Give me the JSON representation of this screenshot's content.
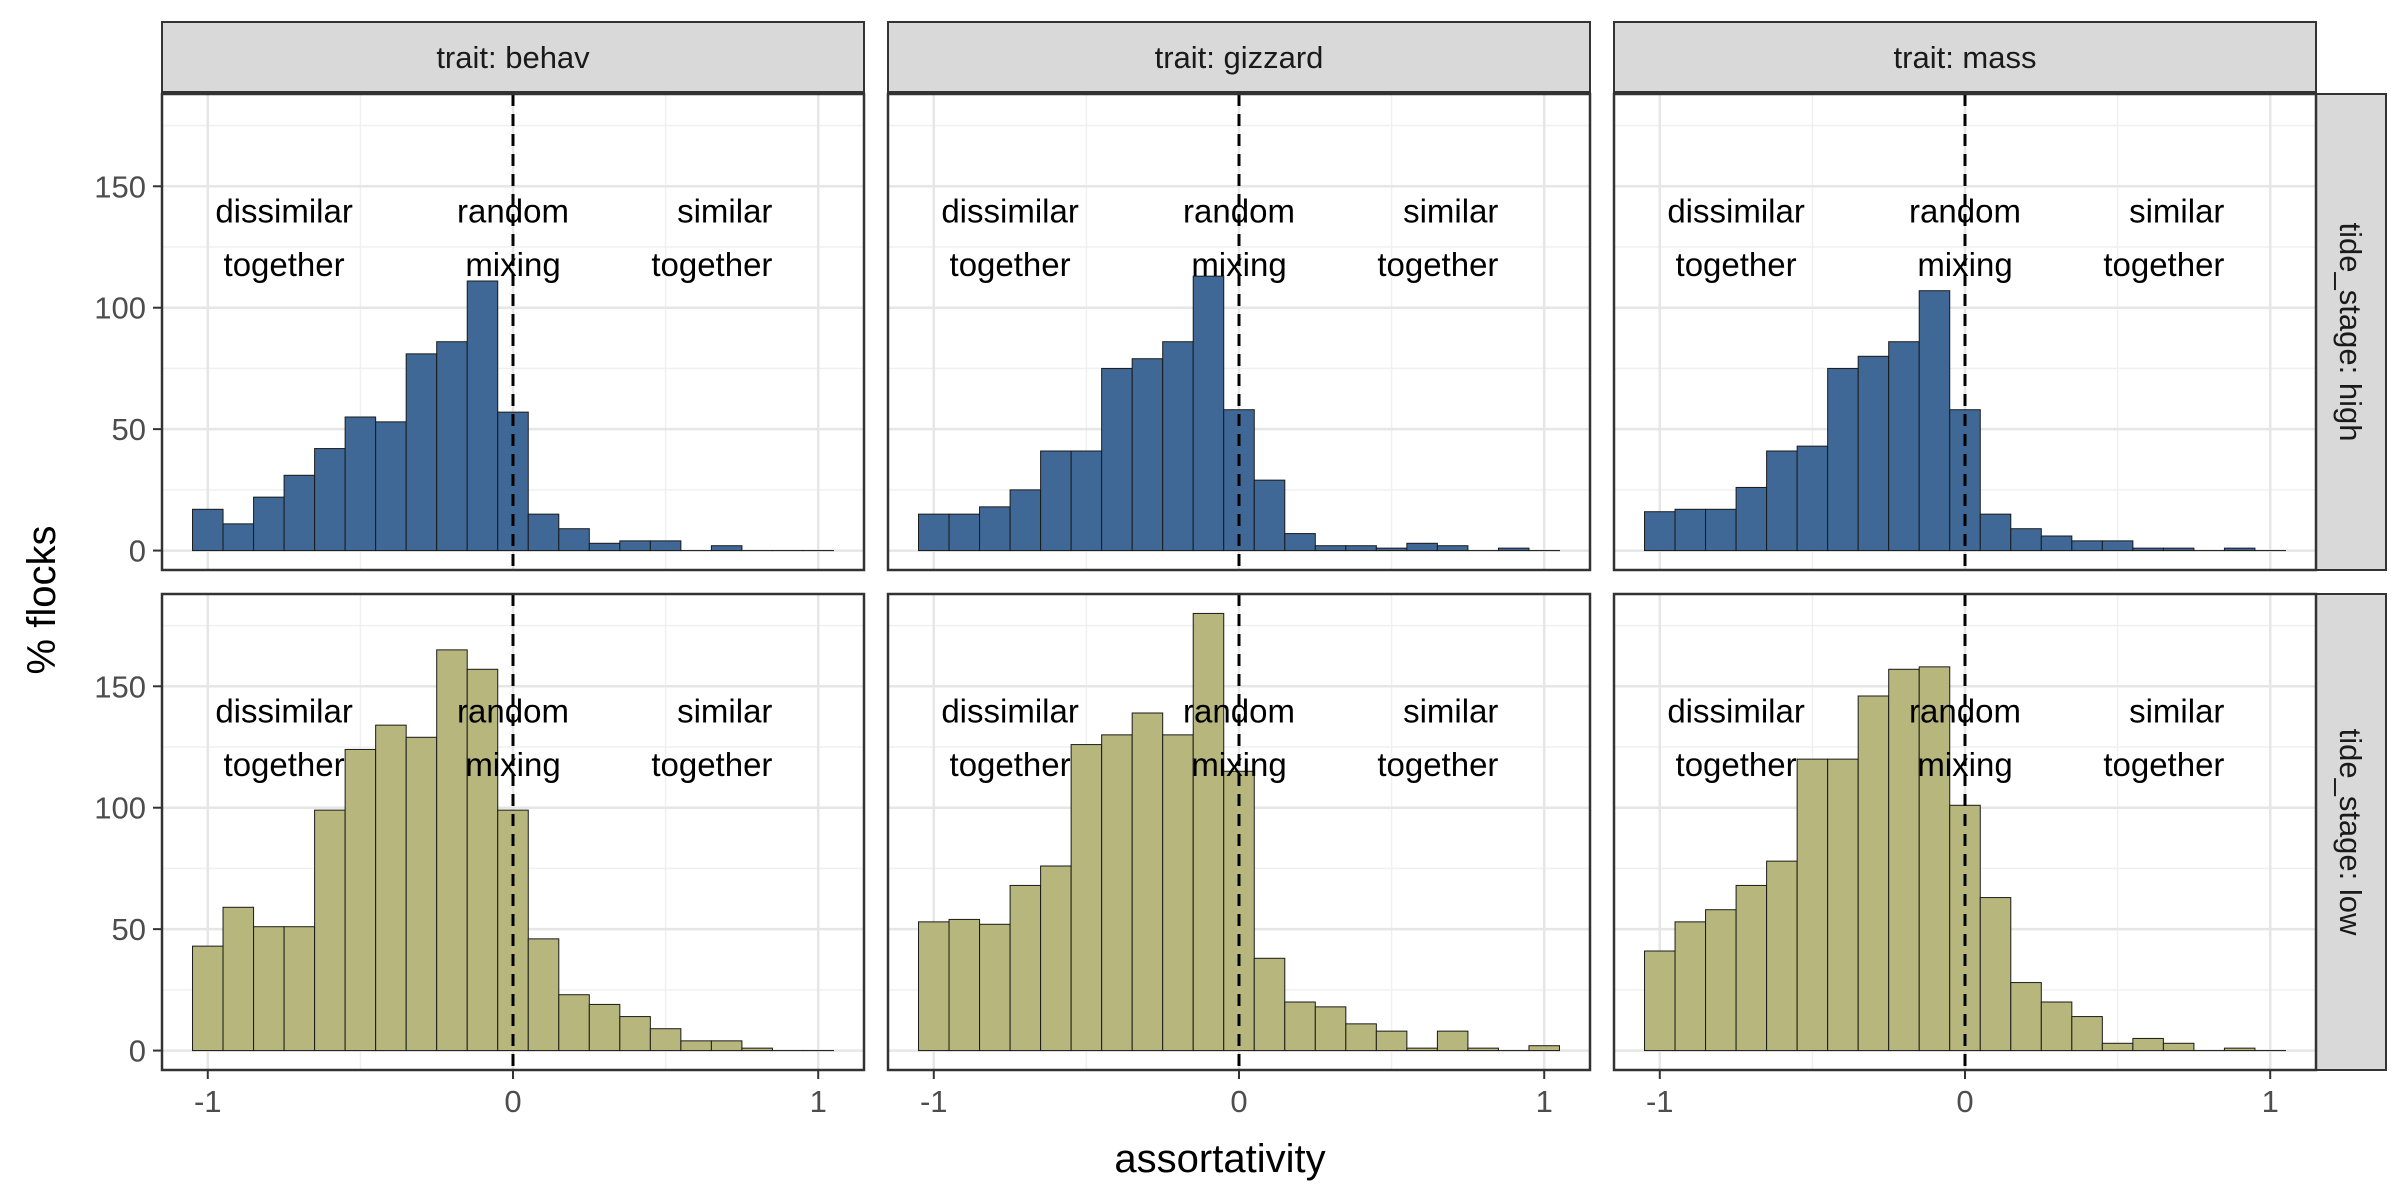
{
  "chart_data": {
    "type": "bar",
    "subtype": "histogram",
    "xlabel": "assortativity",
    "ylabel": "% flocks",
    "xlim": [
      -1.15,
      1.15
    ],
    "ylim": [
      -8,
      188
    ],
    "x_ticks": [
      -1,
      0,
      1
    ],
    "x_tick_labels": [
      "-1",
      "0",
      "1"
    ],
    "y_ticks": [
      0,
      50,
      100,
      150
    ],
    "y_tick_labels": [
      "0",
      "50",
      "100",
      "150"
    ],
    "bin_width": 0.1,
    "bin_starts": [
      -1.05,
      -0.95,
      -0.85,
      -0.75,
      -0.65,
      -0.55,
      -0.45,
      -0.35,
      -0.25,
      -0.15,
      -0.05,
      0.05,
      0.15,
      0.25,
      0.35,
      0.45,
      0.55,
      0.65,
      0.75,
      0.85,
      0.95
    ],
    "reference_line_x": 0,
    "grid": true,
    "colors": {
      "high": "#3f6896",
      "low": "#b7b77d",
      "bar_outline": "#1a1a1a",
      "strip_fill": "#d9d9d9"
    },
    "annotations": [
      {
        "x": -0.75,
        "line1": "dissimilar",
        "line2": "together",
        "align": "middle"
      },
      {
        "x": 0,
        "line1": "random",
        "line2": "mixing",
        "align": "middle"
      },
      {
        "x": 0.85,
        "line1": "similar",
        "line2": "together",
        "align": "end"
      }
    ],
    "annotation_y": [
      140,
      118
    ],
    "col_strip_labels": [
      "trait: behav",
      "trait: gizzard",
      "trait: mass"
    ],
    "row_strip_labels": [
      "tide_stage: high",
      "tide_stage: low"
    ],
    "panels": [
      {
        "row": 0,
        "col": 0,
        "tide_stage": "high",
        "trait": "behav",
        "values": [
          17,
          11,
          22,
          31,
          42,
          55,
          53,
          81,
          86,
          111,
          57,
          15,
          9,
          3,
          4,
          4,
          0,
          2,
          0,
          0,
          0
        ]
      },
      {
        "row": 0,
        "col": 1,
        "tide_stage": "high",
        "trait": "gizzard",
        "values": [
          15,
          15,
          18,
          25,
          41,
          41,
          75,
          79,
          86,
          113,
          58,
          29,
          7,
          2,
          2,
          1,
          3,
          2,
          0,
          1,
          0
        ]
      },
      {
        "row": 0,
        "col": 2,
        "tide_stage": "high",
        "trait": "mass",
        "values": [
          16,
          17,
          17,
          26,
          41,
          43,
          75,
          80,
          86,
          107,
          58,
          15,
          9,
          6,
          4,
          4,
          1,
          1,
          0,
          1,
          0
        ]
      },
      {
        "row": 1,
        "col": 0,
        "tide_stage": "low",
        "trait": "behav",
        "values": [
          43,
          59,
          51,
          51,
          99,
          124,
          134,
          129,
          165,
          157,
          99,
          46,
          23,
          19,
          14,
          9,
          4,
          4,
          1,
          0,
          0
        ]
      },
      {
        "row": 1,
        "col": 1,
        "tide_stage": "low",
        "trait": "gizzard",
        "values": [
          53,
          54,
          52,
          68,
          76,
          126,
          130,
          139,
          130,
          180,
          115,
          38,
          20,
          18,
          11,
          8,
          1,
          8,
          1,
          0,
          2
        ]
      },
      {
        "row": 1,
        "col": 2,
        "tide_stage": "low",
        "trait": "mass",
        "values": [
          41,
          53,
          58,
          68,
          78,
          120,
          120,
          146,
          157,
          158,
          101,
          63,
          28,
          20,
          14,
          3,
          5,
          3,
          0,
          1,
          0
        ]
      }
    ]
  }
}
